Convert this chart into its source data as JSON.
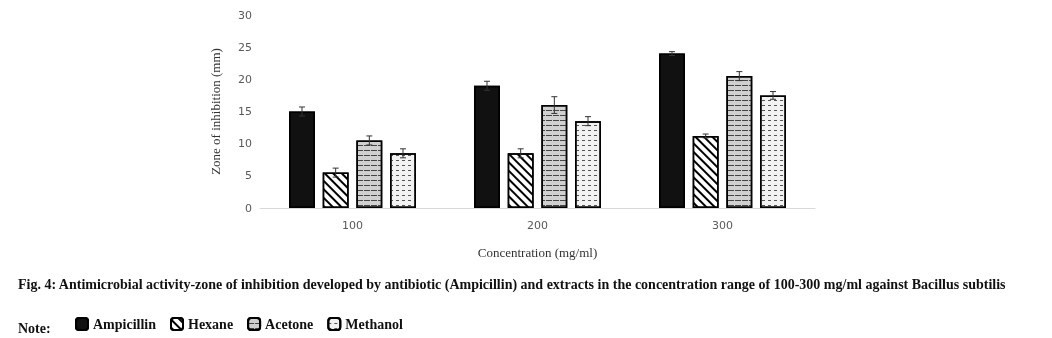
{
  "chart_data": {
    "type": "bar",
    "xlabel": "Concentration (mg/ml)",
    "ylabel": "Zone of inhibition (mm)",
    "categories": [
      "100",
      "200",
      "300"
    ],
    "ylim": [
      0,
      30
    ],
    "yticks": [
      0,
      5,
      10,
      15,
      20,
      25,
      30
    ],
    "grid": false,
    "legend": "bottom",
    "legend_title": "Note:",
    "series": [
      {
        "name": "Ampicillin",
        "color": "#111111",
        "values": [
          15,
          19,
          24
        ],
        "errors": [
          0.7,
          0.7,
          0.3
        ]
      },
      {
        "name": "Hexane",
        "color": "#ffffff",
        "values": [
          5.5,
          8.5,
          11.2
        ],
        "errors": [
          0.7,
          0.7,
          0.3
        ]
      },
      {
        "name": "Acetone",
        "color": "#d0d0d0",
        "values": [
          10.5,
          16,
          20.5
        ],
        "errors": [
          0.7,
          1.3,
          0.7
        ]
      },
      {
        "name": "Methanol",
        "color": "#f2f2f2",
        "values": [
          8.5,
          13.5,
          17.5
        ],
        "errors": [
          0.7,
          0.7,
          0.6
        ]
      }
    ],
    "annotations": [
      "Fig. 4: Antimicrobial activity-zone of inhibition developed by antibiotic (Ampicillin) and extracts in the concentration range of 100-300 mg/ml against Bacillus subtilis"
    ]
  }
}
